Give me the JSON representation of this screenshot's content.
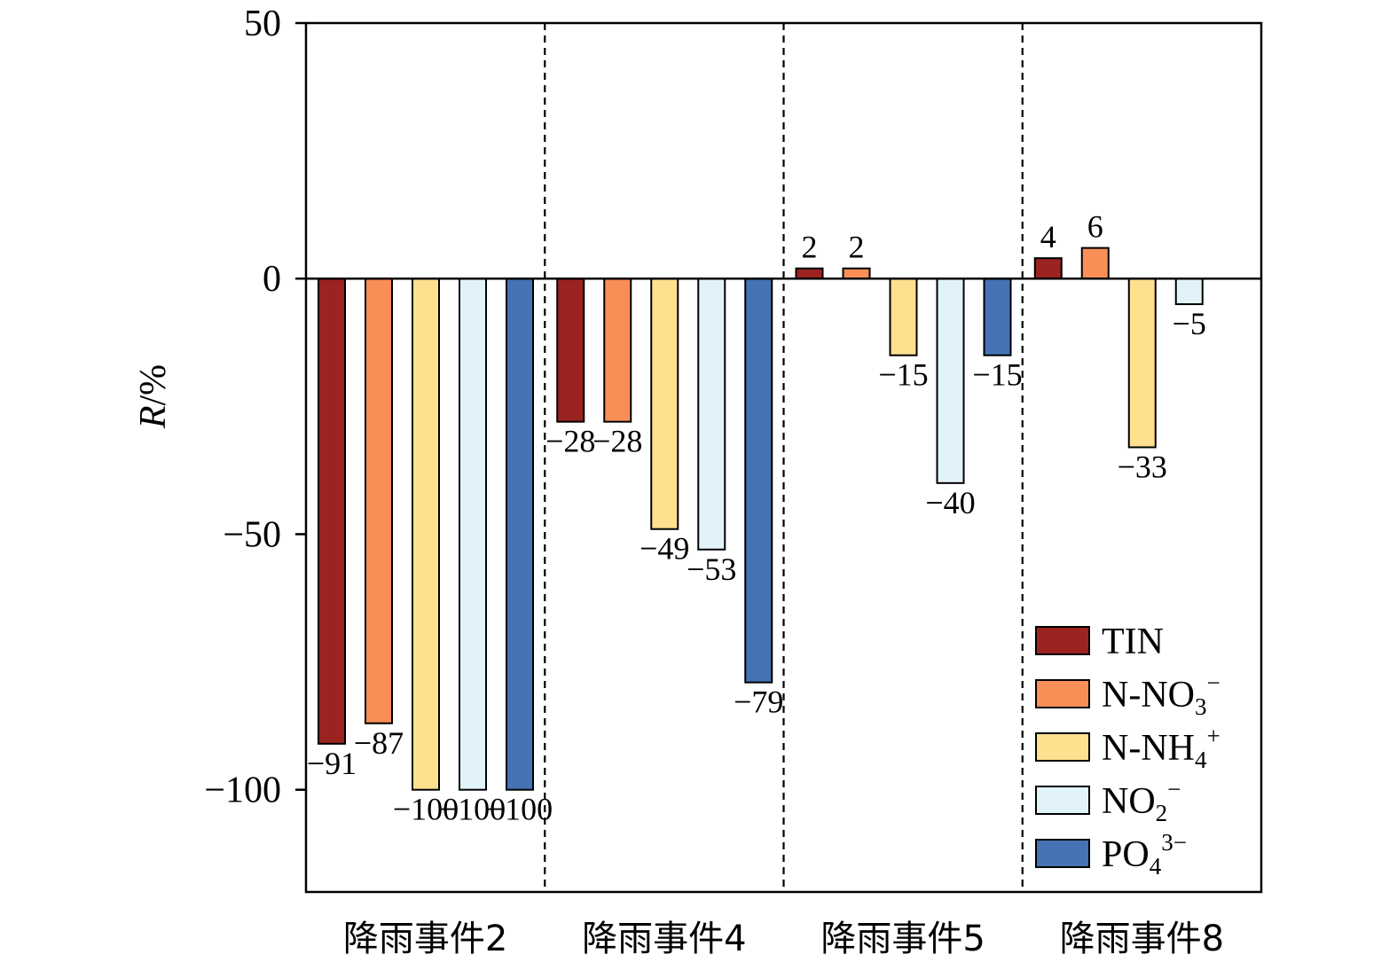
{
  "chart_data": {
    "type": "bar",
    "ylabel_italic": "R",
    "ylabel_unit": "/%",
    "ylim": [
      -120,
      50
    ],
    "yticks": [
      50,
      0,
      -50,
      -100
    ],
    "ytick_labels": [
      "50",
      "0",
      "−50",
      "−100"
    ],
    "categories": [
      "降雨事件2",
      "降雨事件4",
      "降雨事件5",
      "降雨事件8"
    ],
    "series": [
      {
        "name": "TIN",
        "color": "#9b2320",
        "values": [
          -91,
          -28,
          2,
          4
        ],
        "labels": [
          "−91",
          "−28",
          "2",
          "4"
        ]
      },
      {
        "name": "N-NO3−",
        "name_base": "N-NO",
        "name_sub": "3",
        "name_sup": "−",
        "color": "#f98e57",
        "values": [
          -87,
          -28,
          2,
          6
        ],
        "labels": [
          "−87",
          "−28",
          "2",
          "6"
        ]
      },
      {
        "name": "N-NH4+",
        "name_base": "N-NH",
        "name_sub": "4",
        "name_sup": "+",
        "color": "#fee08f",
        "values": [
          -100,
          -49,
          -15,
          -33
        ],
        "labels": [
          "−100",
          "−49",
          "−15",
          "−33"
        ]
      },
      {
        "name": "NO2−",
        "name_base": "NO",
        "name_sub": "2",
        "name_sup": "−",
        "color": "#e1f3f9",
        "values": [
          -100,
          -53,
          -40,
          -5
        ],
        "labels": [
          "−100",
          "−53",
          "−40",
          "−5"
        ]
      },
      {
        "name": "PO43−",
        "name_base": "PO",
        "name_sub": "4",
        "name_sup": "3−",
        "color": "#4573b4",
        "values": [
          -100,
          -79,
          -15,
          null
        ],
        "labels": [
          "−100",
          "−79",
          "−15",
          ""
        ]
      }
    ],
    "grid": false,
    "group_separators": "dashed",
    "legend_position": "bottom-right"
  }
}
